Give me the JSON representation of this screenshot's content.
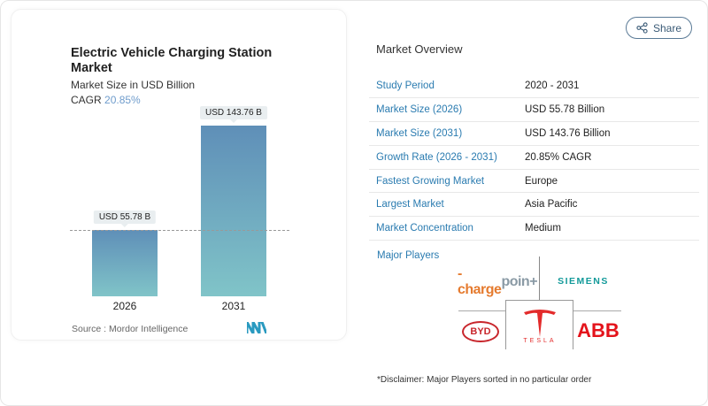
{
  "chart_card": {
    "title": "Electric Vehicle Charging Station Market",
    "subtitle": "Market Size in USD Billion",
    "cagr_label": "CAGR",
    "cagr_value": "20.85%",
    "source": "Source :  Mordor Intelligence"
  },
  "chart_data": {
    "type": "bar",
    "categories": [
      "2026",
      "2031"
    ],
    "values": [
      55.78,
      143.76
    ],
    "data_labels": [
      "USD 55.78 B",
      "USD 143.76 B"
    ],
    "ylabel": "Market Size in USD Billion",
    "colors": [
      "#5f8fb8",
      "#80c4c8"
    ]
  },
  "share": {
    "label": "Share",
    "icon": "share-icon"
  },
  "overview": {
    "title": "Market Overview",
    "rows": [
      {
        "k": "Study Period",
        "v": "2020 - 2031"
      },
      {
        "k": "Market Size (2026)",
        "v": "USD 55.78 Billion"
      },
      {
        "k": "Market Size (2031)",
        "v": "USD 143.76 Billion"
      },
      {
        "k": "Growth Rate (2026 - 2031)",
        "v": "20.85% CAGR"
      },
      {
        "k": "Fastest Growing Market",
        "v": "Europe"
      },
      {
        "k": "Largest Market",
        "v": "Asia Pacific"
      },
      {
        "k": "Market Concentration",
        "v": "Medium"
      }
    ]
  },
  "players": {
    "title": "Major Players",
    "logos": [
      "chargepoin+",
      "SIEMENS",
      "BYD",
      "TESLA",
      "ABB"
    ],
    "disclaimer": "*Disclaimer: Major Players sorted in no particular order"
  }
}
